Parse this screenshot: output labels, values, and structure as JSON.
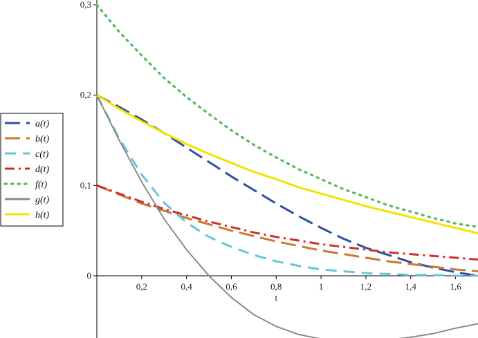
{
  "chart_data": {
    "type": "line",
    "xlabel": "t",
    "ylabel": "",
    "xlim": [
      0,
      1.7
    ],
    "ylim": [
      -0.075,
      0.3
    ],
    "x_ticks": [
      "0,2",
      "0,4",
      "0,6",
      "0,8",
      "1",
      "1,2",
      "1,4",
      "1,6"
    ],
    "x_tick_values": [
      0.2,
      0.4,
      0.6,
      0.8,
      1.0,
      1.2,
      1.4,
      1.6
    ],
    "y_ticks": [
      "0",
      "0,1",
      "0,2",
      "0,3"
    ],
    "y_tick_values": [
      0,
      0.1,
      0.2,
      0.3
    ],
    "grid": false,
    "legend_position": "left",
    "x": [
      0,
      0.1,
      0.2,
      0.3,
      0.4,
      0.5,
      0.6,
      0.7,
      0.8,
      0.9,
      1.0,
      1.1,
      1.2,
      1.3,
      1.4,
      1.5,
      1.6,
      1.7
    ],
    "series": [
      {
        "name": "a(t)",
        "color": "#2e4fa0",
        "dash": "long-dash",
        "values": [
          0.2,
          0.187,
          0.173,
          0.158,
          0.142,
          0.126,
          0.11,
          0.095,
          0.08,
          0.066,
          0.053,
          0.041,
          0.031,
          0.023,
          0.015,
          0.009,
          0.004,
          0.0
        ]
      },
      {
        "name": "b(t)",
        "color": "#c9782f",
        "dash": "long-dash",
        "values": [
          0.1,
          0.09,
          0.08,
          0.072,
          0.064,
          0.057,
          0.05,
          0.044,
          0.038,
          0.033,
          0.028,
          0.024,
          0.02,
          0.016,
          0.013,
          0.01,
          0.007,
          0.005
        ]
      },
      {
        "name": "c(t)",
        "color": "#63c7d6",
        "dash": "dash",
        "values": [
          0.2,
          0.152,
          0.112,
          0.081,
          0.059,
          0.043,
          0.032,
          0.023,
          0.016,
          0.011,
          0.007,
          0.005,
          0.003,
          0.002,
          0.001,
          0.001,
          0.0,
          0.0
        ]
      },
      {
        "name": "d(t)",
        "color": "#d42a2a",
        "dash": "dash-dot",
        "values": [
          0.1,
          0.091,
          0.082,
          0.074,
          0.067,
          0.06,
          0.054,
          0.048,
          0.043,
          0.039,
          0.035,
          0.032,
          0.029,
          0.026,
          0.024,
          0.022,
          0.02,
          0.018
        ]
      },
      {
        "name": "f(t)",
        "color": "#5cb85c",
        "dash": "dot",
        "values": [
          0.3,
          0.27,
          0.244,
          0.219,
          0.198,
          0.179,
          0.161,
          0.145,
          0.131,
          0.118,
          0.107,
          0.096,
          0.087,
          0.078,
          0.071,
          0.064,
          0.058,
          0.054
        ]
      },
      {
        "name": "g(t)",
        "color": "#8a8a8a",
        "dash": "solid",
        "values": [
          0.2,
          0.15,
          0.104,
          0.063,
          0.029,
          0.0,
          -0.024,
          -0.043,
          -0.056,
          -0.065,
          -0.07,
          -0.072,
          -0.072,
          -0.071,
          -0.068,
          -0.064,
          -0.058,
          -0.053
        ]
      },
      {
        "name": "h(t)",
        "color": "#f2e200",
        "dash": "solid",
        "values": [
          0.2,
          0.185,
          0.171,
          0.158,
          0.146,
          0.135,
          0.125,
          0.115,
          0.107,
          0.098,
          0.091,
          0.084,
          0.077,
          0.071,
          0.065,
          0.059,
          0.053,
          0.047
        ]
      }
    ]
  }
}
